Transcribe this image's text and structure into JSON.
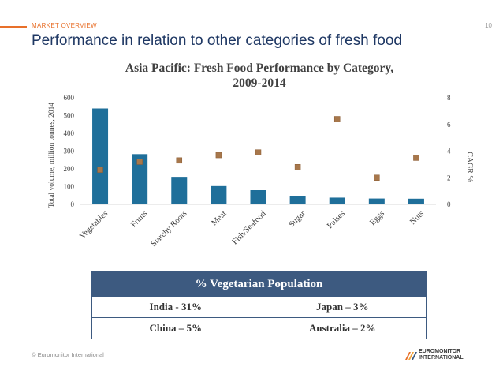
{
  "header": {
    "section_label": "MARKET OVERVIEW",
    "page_number": "10",
    "title": "Performance in relation to other categories of fresh food"
  },
  "chart_data": {
    "type": "bar",
    "title_line1": "Asia Pacific: Fresh Food Performance by Category,",
    "title_line2": "2009-2014",
    "ylabel": "Total volume, million tonnes, 2014",
    "y2label": "CAGR %",
    "ylim": [
      0,
      600
    ],
    "y_ticks": [
      0,
      100,
      200,
      300,
      400,
      500,
      600
    ],
    "y2lim": [
      0,
      8
    ],
    "y2_ticks": [
      0,
      2,
      4,
      6,
      8
    ],
    "categories": [
      "Vegetables",
      "Fruits",
      "Starchy Roots",
      "Meat",
      "Fish/Seafood",
      "Sugar",
      "Pulses",
      "Eggs",
      "Nuts"
    ],
    "series": [
      {
        "type": "bar",
        "axis": "left",
        "values": [
          540,
          283,
          155,
          103,
          80,
          45,
          38,
          33,
          32
        ],
        "color": "#1f6f9a"
      },
      {
        "type": "scatter",
        "axis": "right",
        "values": [
          2.6,
          3.2,
          3.3,
          3.7,
          3.9,
          2.8,
          6.4,
          2.0,
          3.5
        ],
        "color": "#a7774b"
      }
    ],
    "grid": false
  },
  "vegetarian_table": {
    "header": "% Vegetarian Population",
    "rows": [
      [
        "India - 31%",
        "Japan – 3%"
      ],
      [
        "China – 5%",
        "Australia – 2%"
      ]
    ]
  },
  "footer": {
    "copyright": "© Euromonitor International",
    "logo_line1": "EUROMONITOR",
    "logo_line2": "INTERNATIONAL"
  },
  "colors": {
    "accent": "#e8702a",
    "title": "#1f3864",
    "bar": "#1f6f9a",
    "marker": "#a7774b",
    "table_header": "#3d5a80"
  }
}
